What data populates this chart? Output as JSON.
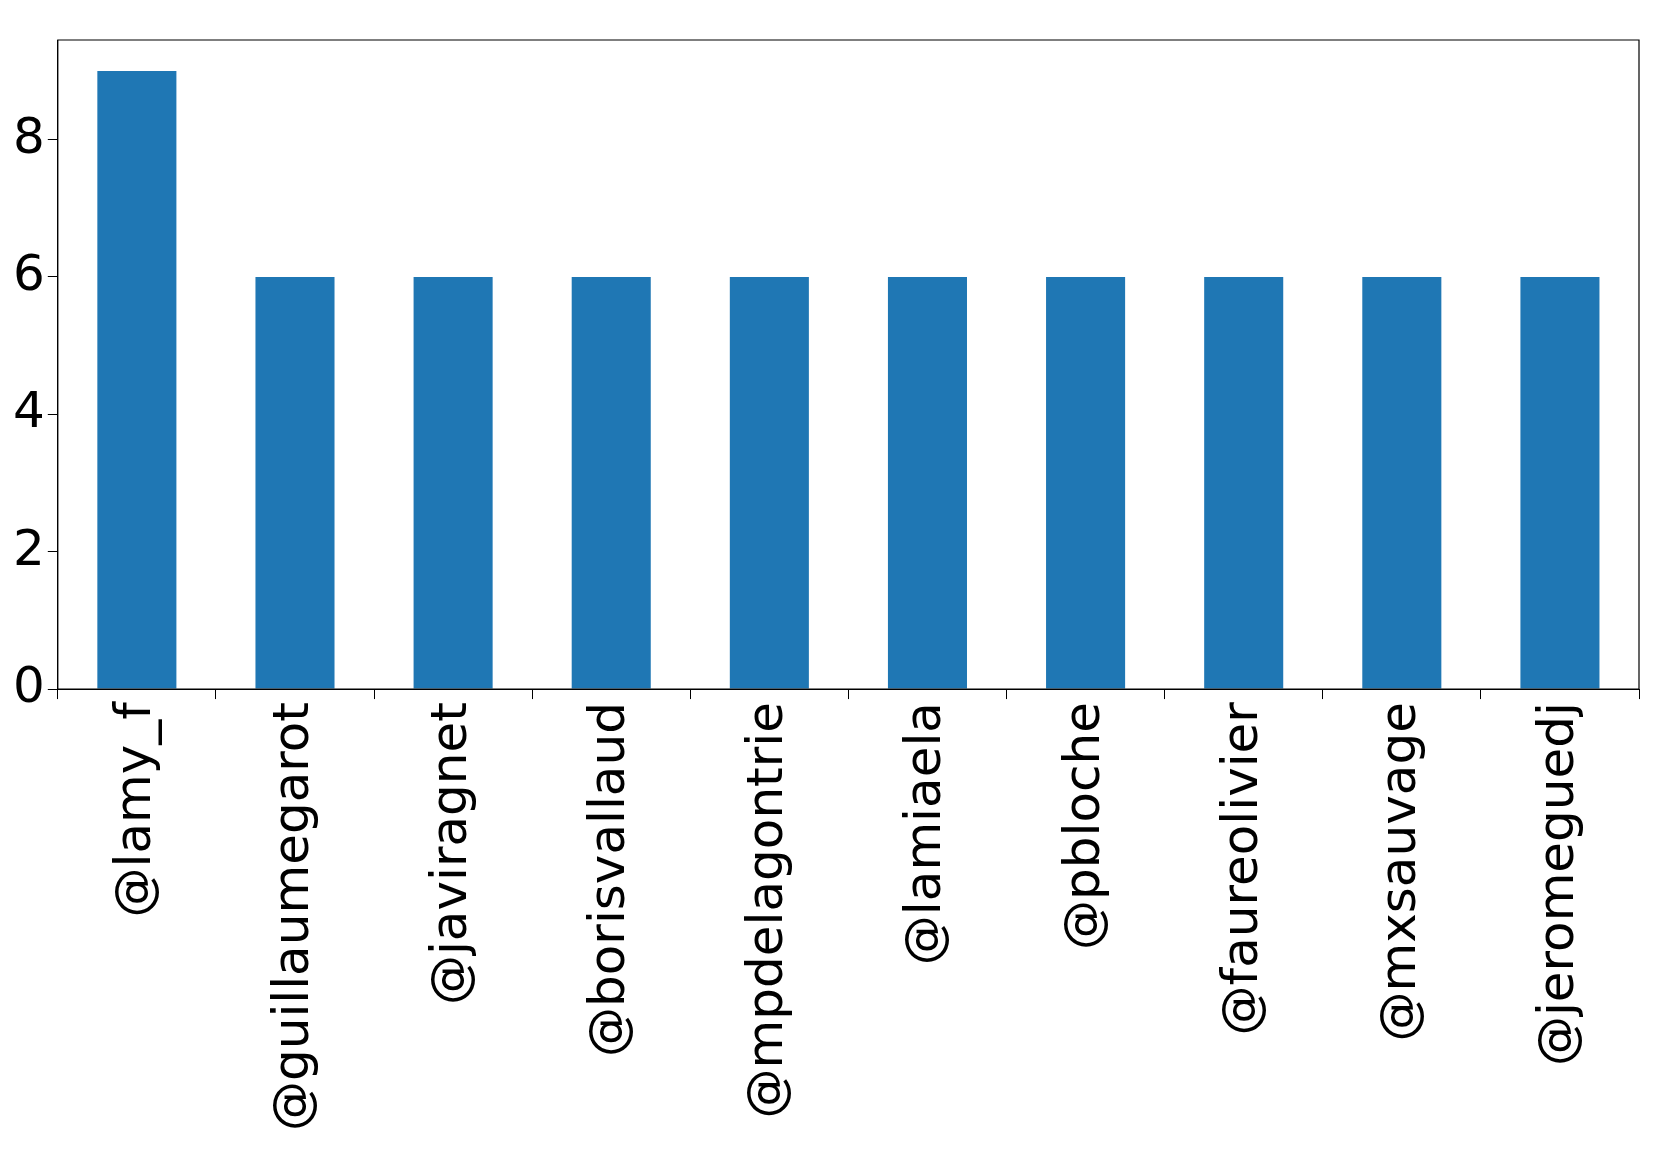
{
  "chart_data": {
    "type": "bar",
    "categories": [
      "@lamy_f",
      "@guillaumegarot",
      "@javiragnet",
      "@borisvallaud",
      "@mpdelagontrie",
      "@lamiaela",
      "@pbloche",
      "@faureolivier",
      "@mxsauvage",
      "@jeromeguedj"
    ],
    "values": [
      9,
      6,
      6,
      6,
      6,
      6,
      6,
      6,
      6,
      6
    ],
    "color": "#1f77b4",
    "ylim": [
      0,
      9.45
    ],
    "yticks": [
      0,
      2,
      4,
      6,
      8
    ],
    "grid": false,
    "legend": false
  }
}
